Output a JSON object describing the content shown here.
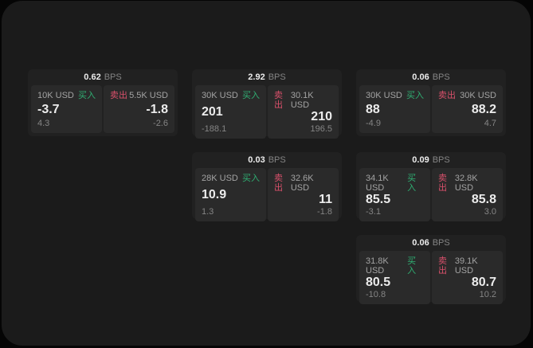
{
  "theme": {
    "page_bg": "#050505",
    "window_bg": "#1b1b1b",
    "card_bg": "#212121",
    "panel_bg": "#2a2a2a",
    "text_primary": "#ececec",
    "text_secondary": "#a3a3a3",
    "text_muted": "#858585",
    "buy_color": "#2fae72",
    "sell_color": "#d9506b"
  },
  "labels": {
    "bps_unit": "BPS",
    "buy": "买入",
    "sell": "卖出"
  },
  "cards": [
    {
      "bps": "0.62",
      "buy": {
        "amount": "10K USD",
        "price": "-3.7",
        "delta": "4.3"
      },
      "sell": {
        "amount": "5.5K USD",
        "price": "-1.8",
        "delta": "-2.6"
      }
    },
    {
      "bps": "2.92",
      "buy": {
        "amount": "30K USD",
        "price": "201",
        "delta": "-188.1"
      },
      "sell": {
        "amount": "30.1K USD",
        "price": "210",
        "delta": "196.5"
      }
    },
    {
      "bps": "0.06",
      "buy": {
        "amount": "30K USD",
        "price": "88",
        "delta": "-4.9"
      },
      "sell": {
        "amount": "30K USD",
        "price": "88.2",
        "delta": "4.7"
      }
    },
    {
      "bps": "0.03",
      "buy": {
        "amount": "28K USD",
        "price": "10.9",
        "delta": "1.3"
      },
      "sell": {
        "amount": "32.6K USD",
        "price": "11",
        "delta": "-1.8"
      }
    },
    {
      "bps": "0.09",
      "buy": {
        "amount": "34.1K USD",
        "price": "85.5",
        "delta": "-3.1"
      },
      "sell": {
        "amount": "32.8K USD",
        "price": "85.8",
        "delta": "3.0"
      }
    },
    {
      "bps": "0.06",
      "buy": {
        "amount": "31.8K USD",
        "price": "80.5",
        "delta": "-10.8"
      },
      "sell": {
        "amount": "39.1K USD",
        "price": "80.7",
        "delta": "10.2"
      }
    }
  ]
}
